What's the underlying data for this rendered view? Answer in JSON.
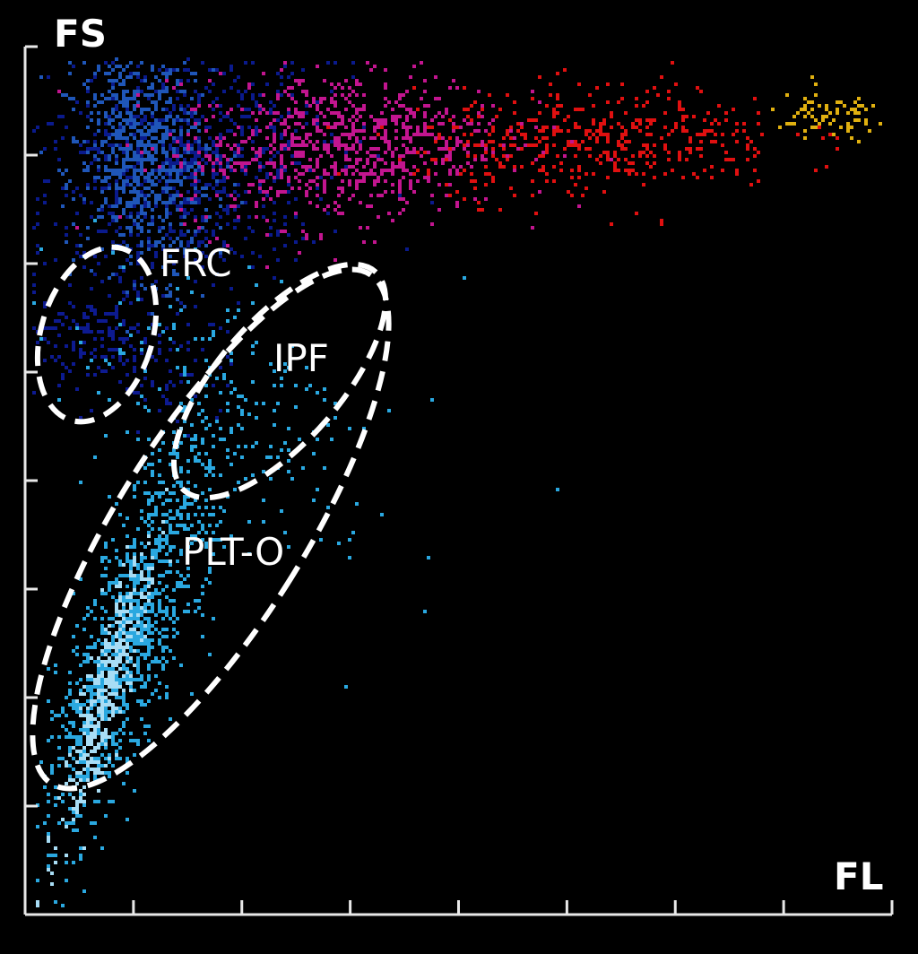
{
  "chart_data": {
    "type": "scatter",
    "xlabel": "FL",
    "ylabel": "FS",
    "xlim": [
      0,
      8
    ],
    "ylim": [
      0,
      8
    ],
    "x_ticks": 8,
    "y_ticks": 8,
    "tick_labels_shown": false,
    "grid": false,
    "background": "#000000",
    "populations": [
      {
        "color": "#0a1a8c",
        "center": [
          1.45,
          6.9
        ],
        "spread": [
          0.75,
          0.55
        ],
        "angle": 20,
        "count": 900
      },
      {
        "color": "#1f56b8",
        "center": [
          1.05,
          7.0
        ],
        "spread": [
          0.3,
          0.55
        ],
        "angle": 10,
        "count": 700
      },
      {
        "color": "#c2158f",
        "center": [
          2.9,
          7.1
        ],
        "spread": [
          0.75,
          0.35
        ],
        "angle": 5,
        "count": 800
      },
      {
        "color": "#e01010",
        "center": [
          5.3,
          7.15
        ],
        "spread": [
          0.85,
          0.25
        ],
        "angle": 2,
        "count": 450
      },
      {
        "color": "#e0b010",
        "center": [
          7.4,
          7.35
        ],
        "spread": [
          0.3,
          0.12
        ],
        "angle": 3,
        "count": 80
      },
      {
        "color": "#0d1a90",
        "center": [
          0.6,
          5.3
        ],
        "spread": [
          0.25,
          0.55
        ],
        "angle": 75,
        "count": 250
      },
      {
        "color": "#2aa8e0",
        "center": [
          1.9,
          4.6
        ],
        "spread": [
          0.55,
          0.9
        ],
        "angle": 50,
        "count": 220
      },
      {
        "color": "#2aa8e0",
        "center": [
          0.95,
          2.6
        ],
        "spread": [
          1.0,
          0.22
        ],
        "angle": 71,
        "count": 1100
      },
      {
        "color": "#a8ddf5",
        "center": [
          0.75,
          2.1
        ],
        "spread": [
          0.7,
          0.09
        ],
        "angle": 74,
        "count": 350
      }
    ],
    "gates": [
      {
        "label": "FRC"
      },
      {
        "label": "IPF"
      },
      {
        "label": "PLT-O"
      }
    ]
  }
}
